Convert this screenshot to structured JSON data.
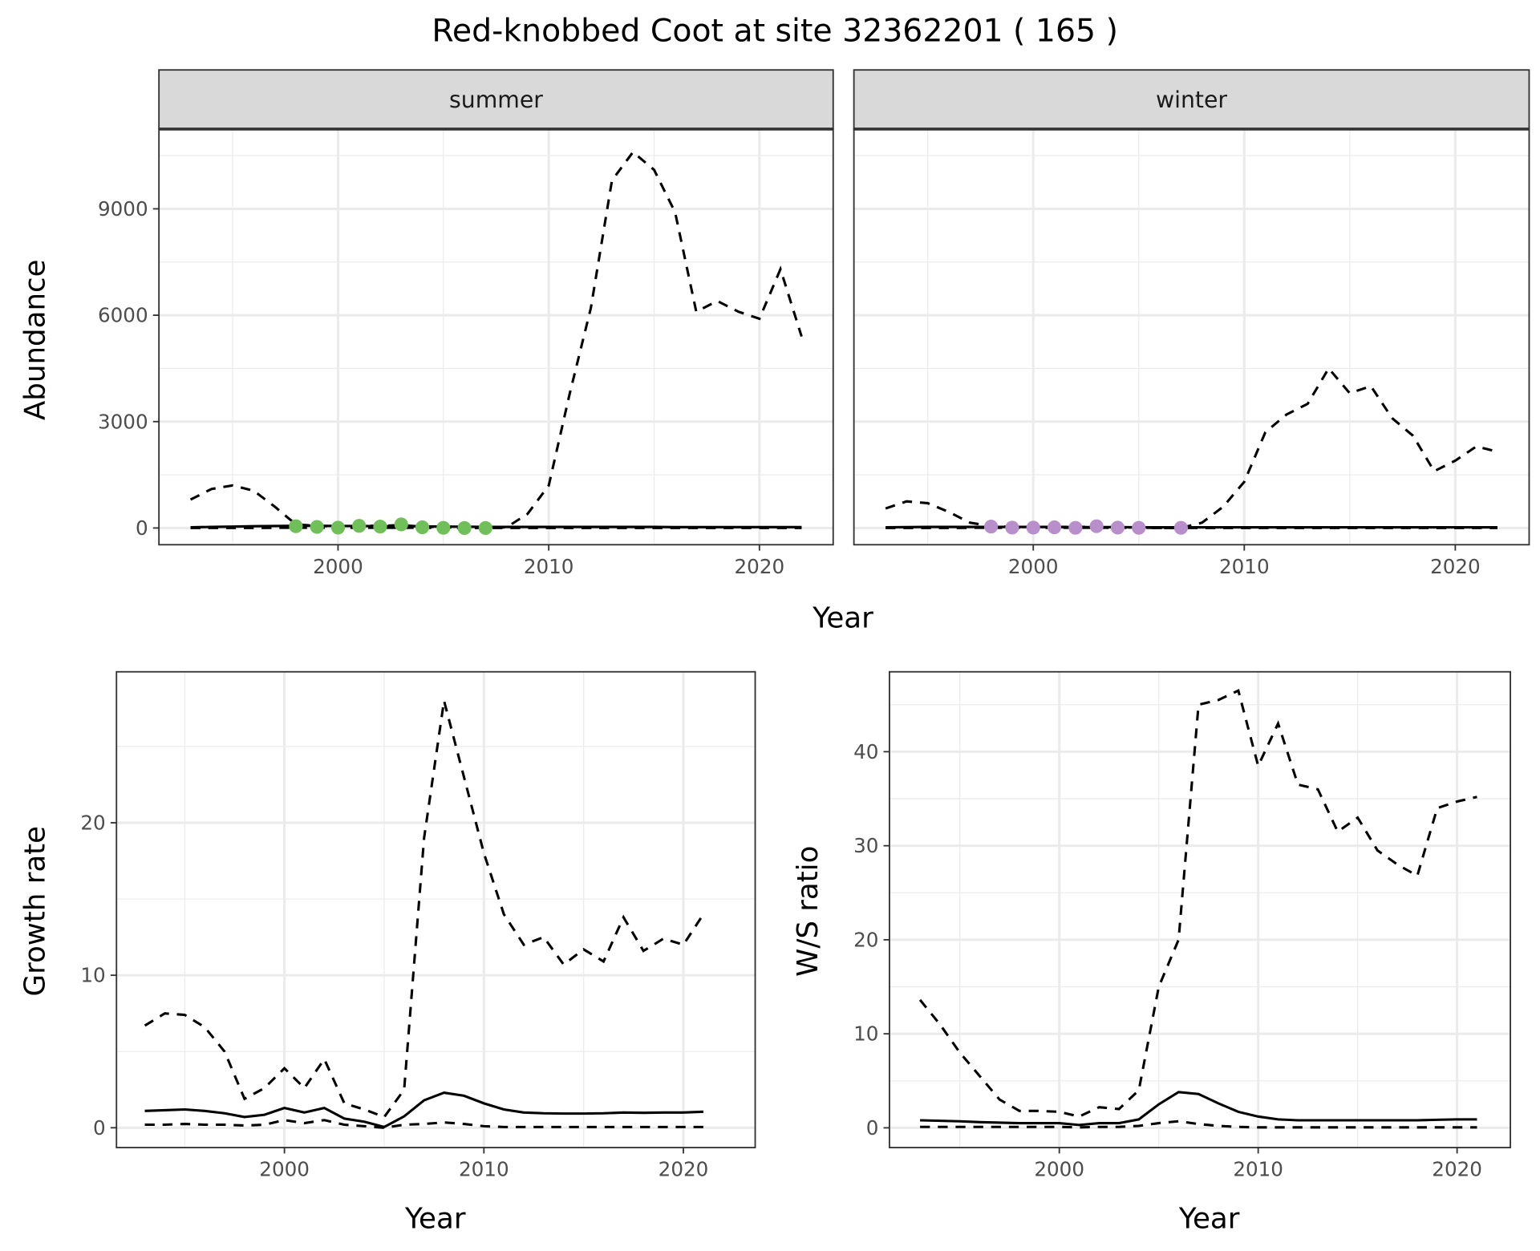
{
  "title": "Red-knobbed Coot at site 32362201 ( 165 )",
  "colors": {
    "summer_points": "#71bf5a",
    "winter_points": "#b98fcb",
    "line": "#000000",
    "strip_bg": "#d9d9d9",
    "grid": "#ebebeb"
  },
  "chart_data": [
    {
      "type": "line",
      "id": "abundance",
      "facets": [
        "summer",
        "winter"
      ],
      "xlabel": "Year",
      "ylabel": "Abundance",
      "xticks": [
        2000,
        2010,
        2020
      ],
      "yticks": [
        0,
        3000,
        6000,
        9000
      ],
      "xlim": [
        1991.5,
        2023.5
      ],
      "ylim": [
        -472,
        11250
      ],
      "x": [
        1993,
        1994,
        1995,
        1996,
        1997,
        1998,
        1999,
        2000,
        2001,
        2002,
        2003,
        2004,
        2005,
        2006,
        2007,
        2008,
        2009,
        2010,
        2011,
        2012,
        2013,
        2014,
        2015,
        2016,
        2017,
        2018,
        2019,
        2020,
        2021,
        2022
      ],
      "panels": {
        "summer": {
          "upper": [
            800,
            1100,
            1200,
            1050,
            600,
            100,
            60,
            40,
            60,
            60,
            80,
            40,
            20,
            10,
            10,
            20,
            400,
            1200,
            3800,
            6200,
            9800,
            10600,
            10100,
            8900,
            6100,
            6400,
            6100,
            5900,
            7300,
            5400
          ],
          "estimate": [
            20,
            30,
            40,
            50,
            55,
            60,
            60,
            55,
            55,
            50,
            50,
            45,
            40,
            35,
            30,
            30,
            30,
            30,
            30,
            30,
            30,
            30,
            30,
            25,
            25,
            25,
            25,
            25,
            25,
            25
          ],
          "lower": [
            0,
            0,
            0,
            0,
            5,
            5,
            5,
            5,
            5,
            5,
            5,
            5,
            5,
            0,
            0,
            0,
            0,
            0,
            0,
            0,
            0,
            0,
            0,
            0,
            0,
            0,
            0,
            0,
            0,
            0
          ],
          "points_x": [
            1998,
            1999,
            2000,
            2001,
            2002,
            2003,
            2004,
            2005,
            2006,
            2007
          ],
          "points_y": [
            50,
            30,
            10,
            60,
            40,
            100,
            20,
            5,
            0,
            0
          ]
        },
        "winter": {
          "upper": [
            550,
            750,
            700,
            450,
            150,
            50,
            30,
            30,
            30,
            30,
            30,
            20,
            10,
            0,
            0,
            150,
            600,
            1300,
            2700,
            3200,
            3500,
            4500,
            3800,
            4000,
            3100,
            2600,
            1600,
            1900,
            2300,
            2150
          ],
          "estimate": [
            20,
            25,
            30,
            30,
            30,
            30,
            30,
            30,
            30,
            25,
            25,
            25,
            20,
            20,
            20,
            20,
            20,
            20,
            20,
            20,
            20,
            20,
            20,
            20,
            20,
            20,
            20,
            20,
            20,
            20
          ],
          "lower": [
            0,
            0,
            0,
            0,
            5,
            5,
            5,
            5,
            5,
            5,
            5,
            5,
            5,
            0,
            0,
            0,
            0,
            0,
            0,
            0,
            0,
            0,
            0,
            0,
            0,
            0,
            0,
            0,
            0,
            0
          ],
          "points_x": [
            1998,
            1999,
            2000,
            2001,
            2002,
            2003,
            2004,
            2005,
            2007
          ],
          "points_y": [
            40,
            10,
            10,
            20,
            5,
            50,
            10,
            5,
            5
          ]
        }
      }
    },
    {
      "type": "line",
      "id": "growth",
      "xlabel": "Year",
      "ylabel": "Growth rate",
      "xticks": [
        2000,
        2010,
        2020
      ],
      "yticks": [
        0,
        10,
        20
      ],
      "xlim": [
        1991.58,
        2023.6
      ],
      "ylim": [
        -1.3,
        29.9
      ],
      "x": [
        1993,
        1994,
        1995,
        1996,
        1997,
        1998,
        1999,
        2000,
        2001,
        2002,
        2003,
        2004,
        2005,
        2006,
        2007,
        2008,
        2009,
        2010,
        2011,
        2012,
        2013,
        2014,
        2015,
        2016,
        2017,
        2018,
        2019,
        2020,
        2021
      ],
      "upper": [
        6.7,
        7.5,
        7.4,
        6.6,
        5.0,
        1.9,
        2.6,
        3.9,
        2.6,
        4.5,
        1.6,
        1.2,
        0.7,
        2.5,
        19,
        28,
        23,
        18,
        14,
        12,
        12.5,
        10.7,
        11.7,
        10.9,
        13.8,
        11.6,
        12.4,
        12,
        14
      ],
      "estimate": [
        1.1,
        1.15,
        1.2,
        1.1,
        0.95,
        0.7,
        0.85,
        1.3,
        1.0,
        1.3,
        0.6,
        0.4,
        0.05,
        0.75,
        1.8,
        2.3,
        2.1,
        1.6,
        1.2,
        1.0,
        0.95,
        0.93,
        0.93,
        0.95,
        1.0,
        0.98,
        1.0,
        1.0,
        1.05
      ],
      "lower": [
        0.2,
        0.2,
        0.25,
        0.2,
        0.2,
        0.15,
        0.2,
        0.5,
        0.3,
        0.5,
        0.2,
        0.1,
        0.0,
        0.2,
        0.25,
        0.35,
        0.25,
        0.1,
        0.05,
        0.05,
        0.05,
        0.05,
        0.05,
        0.05,
        0.05,
        0.05,
        0.05,
        0.05,
        0.05
      ]
    },
    {
      "type": "line",
      "id": "ws_ratio",
      "xlabel": "Year",
      "ylabel": "W/S ratio",
      "xticks": [
        2000,
        2010,
        2020
      ],
      "yticks": [
        0,
        10,
        20,
        30,
        40
      ],
      "xlim": [
        1991.46,
        2022.68
      ],
      "ylim": [
        -2.1,
        48.5
      ],
      "x": [
        1993,
        1994,
        1995,
        1996,
        1997,
        1998,
        1999,
        2000,
        2001,
        2002,
        2003,
        2004,
        2005,
        2006,
        2007,
        2008,
        2009,
        2010,
        2011,
        2012,
        2013,
        2014,
        2015,
        2016,
        2017,
        2018,
        2019,
        2020,
        2021
      ],
      "upper": [
        13.6,
        11,
        8,
        5.5,
        3,
        1.8,
        1.8,
        1.7,
        1.2,
        2.2,
        2.0,
        4,
        15,
        20,
        45,
        45.5,
        46.5,
        38.5,
        43,
        36.5,
        36,
        31.5,
        33,
        29.5,
        28,
        26.8,
        34,
        34.7,
        35.2
      ],
      "estimate": [
        0.8,
        0.75,
        0.7,
        0.6,
        0.55,
        0.5,
        0.5,
        0.5,
        0.3,
        0.5,
        0.5,
        0.9,
        2.5,
        3.8,
        3.6,
        2.6,
        1.7,
        1.2,
        0.9,
        0.8,
        0.8,
        0.8,
        0.8,
        0.8,
        0.8,
        0.8,
        0.85,
        0.9,
        0.9
      ],
      "lower": [
        0.1,
        0.1,
        0.1,
        0.1,
        0.1,
        0.1,
        0.1,
        0.1,
        0.05,
        0.1,
        0.1,
        0.2,
        0.5,
        0.7,
        0.4,
        0.2,
        0.1,
        0.05,
        0.05,
        0.05,
        0.05,
        0.05,
        0.05,
        0.05,
        0.05,
        0.05,
        0.05,
        0.05,
        0.05
      ]
    }
  ]
}
